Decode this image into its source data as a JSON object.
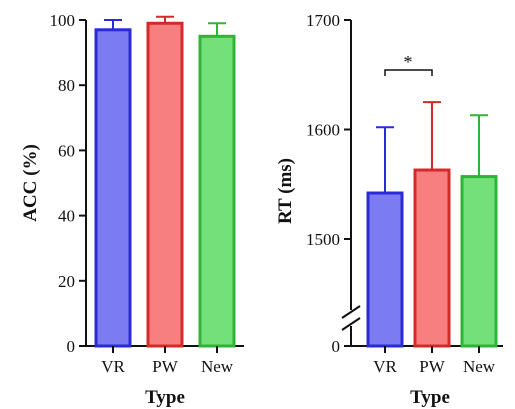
{
  "chart_data": [
    {
      "type": "bar",
      "categories": [
        "VR",
        "PW",
        "New"
      ],
      "values": [
        97,
        99,
        95
      ],
      "errors": [
        3,
        2,
        4
      ],
      "ylabel": "ACC (%)",
      "xlabel": "Type",
      "ylim": [
        0,
        100
      ],
      "yticks": [
        "0",
        "20",
        "40",
        "60",
        "80",
        "100"
      ],
      "colors": {
        "fill": [
          "#7b7bf2",
          "#f77f7f",
          "#73e07a"
        ],
        "stroke": [
          "#2a2ad6",
          "#d42a2a",
          "#2eb437"
        ]
      }
    },
    {
      "type": "bar",
      "categories": [
        "VR",
        "PW",
        "New"
      ],
      "values": [
        1542,
        1563,
        1557
      ],
      "errors": [
        60,
        62,
        56
      ],
      "ylabel": "RT (ms)",
      "xlabel": "Type",
      "ylim": [
        1450,
        1700
      ],
      "axis_break": true,
      "yticks": [
        "0",
        "1500",
        "1600",
        "1700"
      ],
      "annotation": {
        "text": "*",
        "between": [
          "VR",
          "PW"
        ]
      },
      "colors": {
        "fill": [
          "#7b7bf2",
          "#f77f7f",
          "#73e07a"
        ],
        "stroke": [
          "#2a2ad6",
          "#d42a2a",
          "#2eb437"
        ]
      }
    }
  ]
}
